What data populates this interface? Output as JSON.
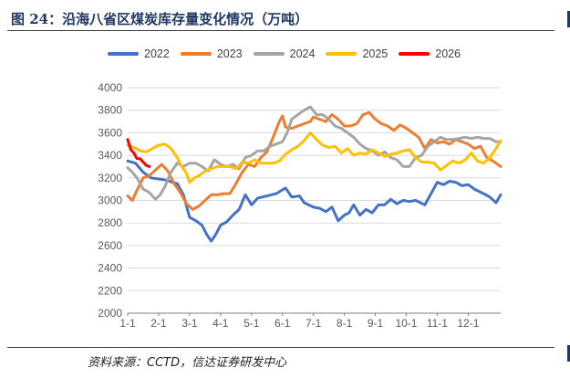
{
  "title": "图 24：沿海八省区煤炭库存量变化情况（万吨）",
  "source": "资料来源：CCTD，信达证券研发中心",
  "chart_data": {
    "type": "line",
    "ylim": [
      2000,
      4000
    ],
    "yticks": [
      2000,
      2200,
      2400,
      2600,
      2800,
      3000,
      3200,
      3400,
      3600,
      3800,
      4000
    ],
    "x_ticks": [
      "1-1",
      "2-1",
      "3-1",
      "4-1",
      "5-1",
      "6-1",
      "7-1",
      "8-1",
      "9-1",
      "10-1",
      "11-1",
      "12-1"
    ],
    "x_domain": [
      1,
      13.05
    ],
    "grid": true,
    "legend_position": "top",
    "series": [
      {
        "name": "2022",
        "color": "#4472c4",
        "points": [
          [
            1.0,
            3350
          ],
          [
            1.25,
            3330
          ],
          [
            1.5,
            3250
          ],
          [
            1.75,
            3200
          ],
          [
            2.0,
            3190
          ],
          [
            2.25,
            3180
          ],
          [
            2.45,
            3160
          ],
          [
            2.6,
            3150
          ],
          [
            2.8,
            3050
          ],
          [
            3.0,
            2850
          ],
          [
            3.2,
            2820
          ],
          [
            3.4,
            2780
          ],
          [
            3.55,
            2700
          ],
          [
            3.7,
            2640
          ],
          [
            3.85,
            2700
          ],
          [
            4.0,
            2780
          ],
          [
            4.2,
            2810
          ],
          [
            4.4,
            2870
          ],
          [
            4.6,
            2920
          ],
          [
            4.8,
            3050
          ],
          [
            5.0,
            2960
          ],
          [
            5.2,
            3020
          ],
          [
            5.5,
            3040
          ],
          [
            5.8,
            3060
          ],
          [
            6.1,
            3110
          ],
          [
            6.3,
            3030
          ],
          [
            6.55,
            3040
          ],
          [
            6.7,
            2980
          ],
          [
            7.0,
            2940
          ],
          [
            7.2,
            2930
          ],
          [
            7.4,
            2900
          ],
          [
            7.6,
            2940
          ],
          [
            7.8,
            2820
          ],
          [
            8.0,
            2870
          ],
          [
            8.15,
            2890
          ],
          [
            8.3,
            2960
          ],
          [
            8.5,
            2870
          ],
          [
            8.7,
            2920
          ],
          [
            8.9,
            2890
          ],
          [
            9.1,
            2960
          ],
          [
            9.3,
            2960
          ],
          [
            9.5,
            3010
          ],
          [
            9.7,
            2970
          ],
          [
            9.9,
            3000
          ],
          [
            10.1,
            2990
          ],
          [
            10.3,
            3000
          ],
          [
            10.6,
            2960
          ],
          [
            10.8,
            3060
          ],
          [
            11.0,
            3160
          ],
          [
            11.2,
            3140
          ],
          [
            11.4,
            3170
          ],
          [
            11.6,
            3160
          ],
          [
            11.8,
            3130
          ],
          [
            12.0,
            3140
          ],
          [
            12.2,
            3100
          ],
          [
            12.5,
            3060
          ],
          [
            12.7,
            3030
          ],
          [
            12.9,
            2980
          ],
          [
            13.05,
            3050
          ]
        ]
      },
      {
        "name": "2023",
        "color": "#ed7d31",
        "points": [
          [
            1.0,
            3040
          ],
          [
            1.15,
            3000
          ],
          [
            1.3,
            3090
          ],
          [
            1.5,
            3200
          ],
          [
            1.7,
            3220
          ],
          [
            1.9,
            3270
          ],
          [
            2.1,
            3320
          ],
          [
            2.3,
            3260
          ],
          [
            2.5,
            3150
          ],
          [
            2.7,
            3070
          ],
          [
            2.9,
            2970
          ],
          [
            3.1,
            2920
          ],
          [
            3.3,
            2950
          ],
          [
            3.5,
            3000
          ],
          [
            3.7,
            3050
          ],
          [
            3.9,
            3050
          ],
          [
            4.1,
            3060
          ],
          [
            4.3,
            3060
          ],
          [
            4.5,
            3150
          ],
          [
            4.7,
            3250
          ],
          [
            4.9,
            3320
          ],
          [
            5.1,
            3300
          ],
          [
            5.3,
            3380
          ],
          [
            5.5,
            3430
          ],
          [
            5.7,
            3560
          ],
          [
            5.9,
            3700
          ],
          [
            6.0,
            3750
          ],
          [
            6.1,
            3650
          ],
          [
            6.3,
            3640
          ],
          [
            6.5,
            3660
          ],
          [
            6.7,
            3680
          ],
          [
            6.9,
            3700
          ],
          [
            7.0,
            3740
          ],
          [
            7.2,
            3720
          ],
          [
            7.4,
            3700
          ],
          [
            7.6,
            3760
          ],
          [
            7.8,
            3720
          ],
          [
            8.0,
            3660
          ],
          [
            8.2,
            3660
          ],
          [
            8.4,
            3680
          ],
          [
            8.6,
            3760
          ],
          [
            8.8,
            3780
          ],
          [
            9.0,
            3720
          ],
          [
            9.2,
            3680
          ],
          [
            9.4,
            3660
          ],
          [
            9.6,
            3620
          ],
          [
            9.8,
            3670
          ],
          [
            10.0,
            3640
          ],
          [
            10.2,
            3600
          ],
          [
            10.4,
            3560
          ],
          [
            10.6,
            3460
          ],
          [
            10.8,
            3540
          ],
          [
            11.0,
            3510
          ],
          [
            11.2,
            3520
          ],
          [
            11.4,
            3500
          ],
          [
            11.6,
            3540
          ],
          [
            11.8,
            3520
          ],
          [
            12.0,
            3500
          ],
          [
            12.2,
            3460
          ],
          [
            12.4,
            3480
          ],
          [
            12.6,
            3380
          ],
          [
            12.8,
            3350
          ],
          [
            13.05,
            3300
          ]
        ]
      },
      {
        "name": "2024",
        "color": "#a5a5a5",
        "points": [
          [
            1.0,
            3290
          ],
          [
            1.15,
            3250
          ],
          [
            1.3,
            3200
          ],
          [
            1.5,
            3100
          ],
          [
            1.7,
            3070
          ],
          [
            1.9,
            3010
          ],
          [
            2.05,
            3050
          ],
          [
            2.2,
            3120
          ],
          [
            2.4,
            3250
          ],
          [
            2.6,
            3330
          ],
          [
            2.8,
            3300
          ],
          [
            3.0,
            3330
          ],
          [
            3.2,
            3330
          ],
          [
            3.4,
            3300
          ],
          [
            3.6,
            3260
          ],
          [
            3.8,
            3360
          ],
          [
            4.0,
            3320
          ],
          [
            4.2,
            3300
          ],
          [
            4.4,
            3320
          ],
          [
            4.6,
            3280
          ],
          [
            4.8,
            3380
          ],
          [
            5.0,
            3400
          ],
          [
            5.2,
            3440
          ],
          [
            5.4,
            3440
          ],
          [
            5.6,
            3480
          ],
          [
            5.8,
            3500
          ],
          [
            6.0,
            3520
          ],
          [
            6.15,
            3600
          ],
          [
            6.3,
            3720
          ],
          [
            6.5,
            3760
          ],
          [
            6.7,
            3800
          ],
          [
            6.9,
            3830
          ],
          [
            7.1,
            3760
          ],
          [
            7.3,
            3760
          ],
          [
            7.5,
            3720
          ],
          [
            7.7,
            3660
          ],
          [
            7.9,
            3640
          ],
          [
            8.1,
            3600
          ],
          [
            8.3,
            3560
          ],
          [
            8.5,
            3500
          ],
          [
            8.7,
            3460
          ],
          [
            8.9,
            3440
          ],
          [
            9.1,
            3400
          ],
          [
            9.3,
            3430
          ],
          [
            9.5,
            3380
          ],
          [
            9.7,
            3360
          ],
          [
            9.9,
            3300
          ],
          [
            10.1,
            3300
          ],
          [
            10.3,
            3380
          ],
          [
            10.5,
            3400
          ],
          [
            10.7,
            3480
          ],
          [
            10.9,
            3520
          ],
          [
            11.1,
            3560
          ],
          [
            11.3,
            3540
          ],
          [
            11.5,
            3540
          ],
          [
            11.7,
            3550
          ],
          [
            11.9,
            3560
          ],
          [
            12.1,
            3550
          ],
          [
            12.3,
            3560
          ],
          [
            12.5,
            3550
          ],
          [
            12.7,
            3550
          ],
          [
            12.9,
            3520
          ],
          [
            13.05,
            3520
          ]
        ]
      },
      {
        "name": "2025",
        "color": "#ffc000",
        "points": [
          [
            1.0,
            3490
          ],
          [
            1.2,
            3470
          ],
          [
            1.4,
            3440
          ],
          [
            1.6,
            3430
          ],
          [
            1.8,
            3460
          ],
          [
            2.0,
            3490
          ],
          [
            2.2,
            3500
          ],
          [
            2.4,
            3460
          ],
          [
            2.6,
            3380
          ],
          [
            2.75,
            3300
          ],
          [
            2.9,
            3240
          ],
          [
            3.0,
            3160
          ],
          [
            3.15,
            3200
          ],
          [
            3.3,
            3220
          ],
          [
            3.5,
            3260
          ],
          [
            3.7,
            3280
          ],
          [
            3.9,
            3300
          ],
          [
            4.1,
            3300
          ],
          [
            4.3,
            3300
          ],
          [
            4.5,
            3280
          ],
          [
            4.7,
            3340
          ],
          [
            4.9,
            3330
          ],
          [
            5.1,
            3360
          ],
          [
            5.3,
            3330
          ],
          [
            5.5,
            3330
          ],
          [
            5.7,
            3330
          ],
          [
            5.9,
            3350
          ],
          [
            6.1,
            3410
          ],
          [
            6.3,
            3450
          ],
          [
            6.5,
            3480
          ],
          [
            6.7,
            3530
          ],
          [
            6.9,
            3600
          ],
          [
            7.1,
            3540
          ],
          [
            7.3,
            3490
          ],
          [
            7.5,
            3470
          ],
          [
            7.7,
            3480
          ],
          [
            7.9,
            3420
          ],
          [
            8.1,
            3460
          ],
          [
            8.3,
            3400
          ],
          [
            8.5,
            3420
          ],
          [
            8.7,
            3410
          ],
          [
            8.9,
            3450
          ],
          [
            9.1,
            3420
          ],
          [
            9.3,
            3390
          ],
          [
            9.5,
            3410
          ],
          [
            9.7,
            3420
          ],
          [
            9.9,
            3440
          ],
          [
            10.1,
            3450
          ],
          [
            10.3,
            3380
          ],
          [
            10.5,
            3340
          ],
          [
            10.7,
            3340
          ],
          [
            10.9,
            3330
          ],
          [
            11.1,
            3270
          ],
          [
            11.3,
            3310
          ],
          [
            11.5,
            3350
          ],
          [
            11.7,
            3330
          ],
          [
            11.9,
            3360
          ],
          [
            12.1,
            3420
          ],
          [
            12.3,
            3350
          ],
          [
            12.5,
            3330
          ],
          [
            12.7,
            3380
          ],
          [
            12.9,
            3460
          ],
          [
            13.05,
            3530
          ]
        ]
      },
      {
        "name": "2026",
        "color": "#ff0000",
        "points": [
          [
            1.0,
            3540
          ],
          [
            1.1,
            3450
          ],
          [
            1.2,
            3420
          ],
          [
            1.3,
            3370
          ],
          [
            1.4,
            3370
          ],
          [
            1.5,
            3340
          ],
          [
            1.6,
            3310
          ],
          [
            1.7,
            3300
          ]
        ]
      }
    ]
  }
}
